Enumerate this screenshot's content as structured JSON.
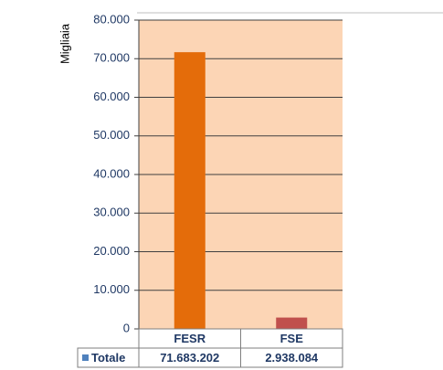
{
  "chart_data": {
    "type": "bar",
    "y_axis_label": "Migliaia",
    "categories": [
      "FESR",
      "FSE"
    ],
    "series": [
      {
        "name": "Totale",
        "color": "#4f81bd",
        "values": [
          71683.202,
          2938.084
        ],
        "value_labels": [
          "71.683.202",
          "2.938.084"
        ]
      }
    ],
    "bar_colors": [
      "#e46c0a",
      "#c0504d"
    ],
    "plot_background": "#fcd5b5",
    "ylim": [
      0,
      80000
    ],
    "yticks": [
      0,
      {
        "value": 10000,
        "label": "10.000"
      },
      {
        "value": 20000,
        "label": "20.000"
      },
      {
        "value": 30000,
        "label": "30.000"
      },
      {
        "value": 40000,
        "label": "40.000"
      },
      {
        "value": 50000,
        "label": "50.000"
      },
      {
        "value": 60000,
        "label": "60.000"
      },
      {
        "value": 70000,
        "label": "70.000"
      },
      {
        "value": 80000,
        "label": "80.000"
      }
    ],
    "grid": true
  }
}
